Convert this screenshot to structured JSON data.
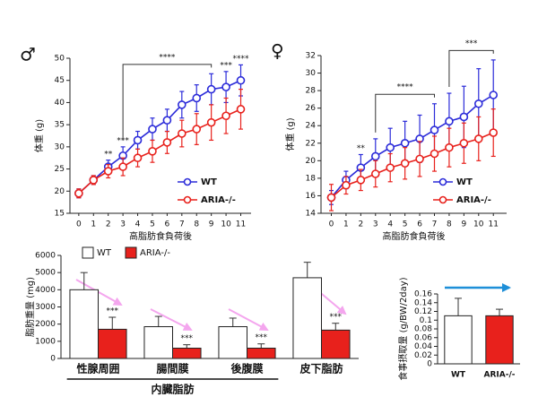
{
  "chart_data": [
    {
      "type": "line",
      "title": "♂",
      "xlabel": "高脂肪食負荷後",
      "ylabel": "体重 (g)",
      "x": [
        0,
        1,
        2,
        3,
        4,
        5,
        6,
        7,
        8,
        9,
        10,
        11
      ],
      "xlim": [
        -0.6,
        11.7
      ],
      "xticks": [
        0,
        1,
        2,
        3,
        4,
        5,
        6,
        7,
        8,
        9,
        10,
        11
      ],
      "ylim": [
        15,
        50
      ],
      "yticks": [
        15,
        20,
        25,
        30,
        35,
        40,
        45,
        50
      ],
      "legend": "lower right",
      "series": [
        {
          "name": "WT",
          "color": "#2b2bd9",
          "values": [
            19.5,
            22.5,
            25.5,
            28,
            31.5,
            34,
            36,
            39.5,
            41,
            43,
            43.5,
            45
          ],
          "errors": [
            1,
            1,
            1.5,
            2,
            2,
            2.5,
            2.5,
            3,
            3,
            3.5,
            3.5,
            3.5
          ]
        },
        {
          "name": "ARIA-/-",
          "color": "#e8211c",
          "values": [
            19.5,
            22.5,
            24.5,
            25.5,
            27.5,
            29,
            31,
            33,
            34,
            35.5,
            37,
            38.5
          ],
          "errors": [
            1,
            1,
            1.5,
            2,
            2,
            2.5,
            2.5,
            3,
            3.5,
            4,
            4,
            4.5
          ]
        }
      ],
      "annotations": [
        {
          "text": "**",
          "x": 2
        },
        {
          "text": "***",
          "x": 3
        },
        {
          "text": "****",
          "x": [
            3,
            9
          ]
        },
        {
          "text": "***",
          "x": 10
        },
        {
          "text": "****",
          "x": 11
        }
      ]
    },
    {
      "type": "line",
      "title": "♀",
      "xlabel": "高脂肪食負荷後",
      "ylabel": "体重 (g)",
      "x": [
        0,
        1,
        2,
        3,
        4,
        5,
        6,
        7,
        8,
        9,
        10,
        11
      ],
      "xlim": [
        -0.7,
        11.9
      ],
      "xticks": [
        0,
        1,
        2,
        3,
        4,
        5,
        6,
        7,
        8,
        9,
        10,
        11
      ],
      "ylim": [
        14,
        32
      ],
      "yticks": [
        14,
        16,
        18,
        20,
        22,
        24,
        26,
        28,
        30,
        32
      ],
      "legend": "lower right",
      "series": [
        {
          "name": "WT",
          "color": "#2b2bd9",
          "values": [
            15.8,
            17.8,
            19.2,
            20.5,
            21.5,
            22,
            22.5,
            23.5,
            24.5,
            25,
            26.5,
            27.5
          ],
          "errors": [
            0.8,
            1,
            1.5,
            2,
            2.2,
            2.5,
            2.7,
            3,
            3.2,
            3.5,
            4,
            4
          ]
        },
        {
          "name": "ARIA-/-",
          "color": "#e8211c",
          "values": [
            15.8,
            17.2,
            17.8,
            18.5,
            19.2,
            19.7,
            20.2,
            20.8,
            21.5,
            22,
            22.5,
            23.2
          ],
          "errors": [
            1.5,
            1,
            1.2,
            1.5,
            1.6,
            1.8,
            2,
            2,
            2.2,
            2.3,
            2.5,
            2.7
          ]
        }
      ],
      "annotations": [
        {
          "text": "**",
          "x": 2
        },
        {
          "text": "****",
          "x": [
            3,
            7
          ]
        },
        {
          "text": "***",
          "x": [
            8,
            11
          ]
        }
      ]
    },
    {
      "type": "bar",
      "ylabel": "脂肪重量 (mg)",
      "categories": [
        "性腺周囲",
        "腸間膜",
        "後腹膜",
        "皮下脂肪"
      ],
      "ylim": [
        0,
        6000
      ],
      "yticks": [
        0,
        1000,
        2000,
        3000,
        4000,
        5000,
        6000
      ],
      "legend": "top left",
      "series": [
        {
          "name": "WT",
          "color": "#ffffff",
          "values": [
            4000,
            1850,
            1850,
            4700
          ],
          "errors": [
            1000,
            600,
            500,
            900
          ]
        },
        {
          "name": "ARIA-/-",
          "color": "#e8211c",
          "values": [
            1700,
            600,
            600,
            1650
          ],
          "errors": [
            700,
            200,
            250,
            400
          ]
        }
      ],
      "annotations": [
        {
          "text": "***",
          "category": 0
        },
        {
          "text": "***",
          "category": 1
        },
        {
          "text": "***",
          "category": 2
        },
        {
          "text": "***",
          "category": 3
        }
      ],
      "group_label": {
        "text": "内臓脂肪",
        "categories": [
          0,
          2
        ]
      }
    },
    {
      "type": "bar",
      "ylabel": "食事摂取量 (g/BW/2day)",
      "categories": [
        "WT",
        "ARIA-/-"
      ],
      "colors": [
        "#ffffff",
        "#e8211c"
      ],
      "values": [
        0.11,
        0.11
      ],
      "errors": [
        0.04,
        0.015
      ],
      "ylim": [
        0,
        0.16
      ],
      "yticks": [
        0,
        0.02,
        0.04,
        0.06,
        0.08,
        0.1,
        0.12,
        0.14,
        0.16
      ]
    }
  ]
}
